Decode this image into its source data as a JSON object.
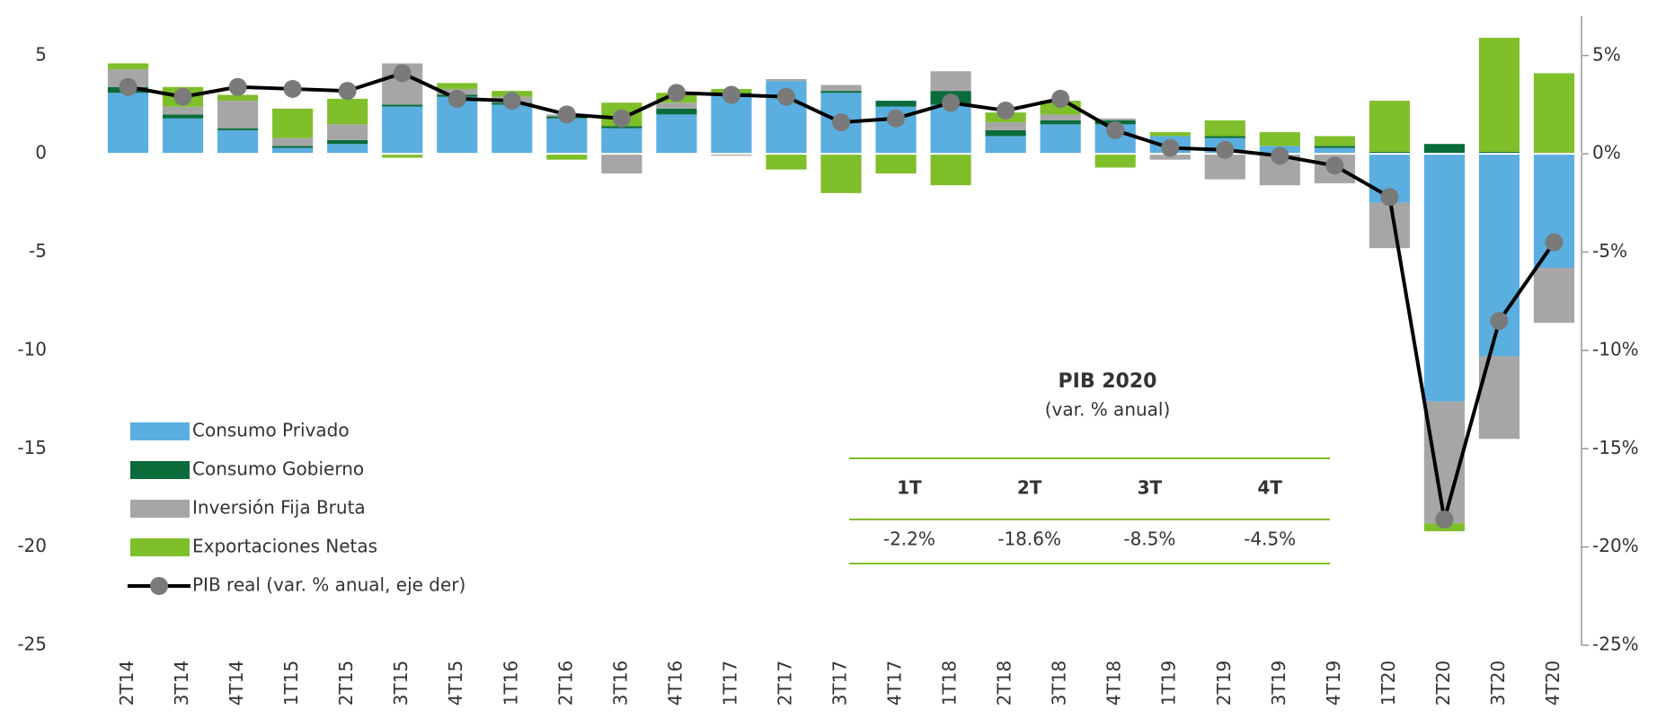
{
  "chart_data": {
    "type": "bar",
    "stacked": true,
    "categories": [
      "2T14",
      "3T14",
      "4T14",
      "1T15",
      "2T15",
      "3T15",
      "4T15",
      "1T16",
      "2T16",
      "3T16",
      "4T16",
      "1T17",
      "2T17",
      "3T17",
      "4T17",
      "1T18",
      "2T18",
      "3T18",
      "4T18",
      "1T19",
      "2T19",
      "3T19",
      "4T19",
      "1T20",
      "2T20",
      "3T20",
      "4T20"
    ],
    "series": [
      {
        "name": "Consumo Privado",
        "color": "#5aaee0",
        "values": [
          3.1,
          1.8,
          1.2,
          0.3,
          0.5,
          2.4,
          2.9,
          2.5,
          1.8,
          1.3,
          2.0,
          3.0,
          3.7,
          3.1,
          2.4,
          2.5,
          0.9,
          1.5,
          1.5,
          0.9,
          0.8,
          0.4,
          0.3,
          -2.5,
          -12.6,
          -10.3,
          -5.8
        ]
      },
      {
        "name": "Consumo Gobierno",
        "color": "#0b6b3a",
        "values": [
          0.3,
          0.2,
          0.1,
          0.1,
          0.2,
          0.1,
          0.1,
          0.1,
          0.1,
          0.1,
          0.3,
          0.1,
          0.0,
          0.1,
          0.3,
          0.7,
          0.3,
          0.2,
          0.2,
          0.0,
          0.1,
          0.0,
          0.1,
          0.1,
          0.5,
          0.1,
          0.0
        ]
      },
      {
        "name": "Inversión Fija Bruta",
        "color": "#a6a6a6",
        "values": [
          0.9,
          0.4,
          1.4,
          0.4,
          0.8,
          2.1,
          0.3,
          0.3,
          0.1,
          -1.0,
          0.3,
          -0.1,
          0.1,
          0.3,
          0.0,
          1.0,
          0.4,
          0.3,
          0.1,
          -0.3,
          -1.3,
          -1.6,
          -1.5,
          -2.3,
          -6.2,
          -4.2,
          -2.8
        ]
      },
      {
        "name": "Exportaciones Netas",
        "color": "#7fbf2a",
        "values": [
          0.3,
          1.0,
          0.3,
          1.5,
          1.3,
          -0.2,
          0.3,
          0.3,
          -0.3,
          1.2,
          0.5,
          0.2,
          -0.8,
          -2.0,
          -1.0,
          -1.6,
          0.5,
          0.7,
          -0.7,
          0.2,
          0.8,
          0.7,
          0.5,
          2.6,
          -0.4,
          5.8,
          4.1
        ]
      },
      {
        "name": "PIB real (var. % anual, eje der)",
        "type": "line",
        "axis": "y2",
        "color": "#000000",
        "marker_color": "#7a7a7a",
        "values": [
          3.4,
          2.9,
          3.4,
          3.3,
          3.2,
          4.1,
          2.8,
          2.7,
          2.0,
          1.8,
          3.1,
          3.0,
          2.9,
          1.6,
          1.8,
          2.6,
          2.2,
          2.8,
          1.2,
          0.3,
          0.2,
          -0.1,
          -0.6,
          -2.2,
          -18.6,
          -8.5,
          -4.5
        ]
      }
    ],
    "ylim": [
      -25,
      7
    ],
    "yticks": [
      5,
      0,
      -5,
      -10,
      -15,
      -20,
      -25
    ],
    "y2lim": [
      -25,
      7
    ],
    "y2ticks": [
      {
        "value": 5,
        "label": "5%"
      },
      {
        "value": 0,
        "label": "0%"
      },
      {
        "value": -5,
        "label": "-5%"
      },
      {
        "value": -10,
        "label": "-10%"
      },
      {
        "value": -15,
        "label": "-15%"
      },
      {
        "value": -20,
        "label": "-20%"
      },
      {
        "value": -25,
        "label": "-25%"
      }
    ],
    "legend": "lower left",
    "table": {
      "title": "PIB 2020",
      "subtitle": "(var. % anual)",
      "columns": [
        "1T",
        "2T",
        "3T",
        "4T"
      ],
      "cells": [
        "-2.2%",
        "-18.6%",
        "-8.5%",
        "-4.5%"
      ]
    }
  }
}
